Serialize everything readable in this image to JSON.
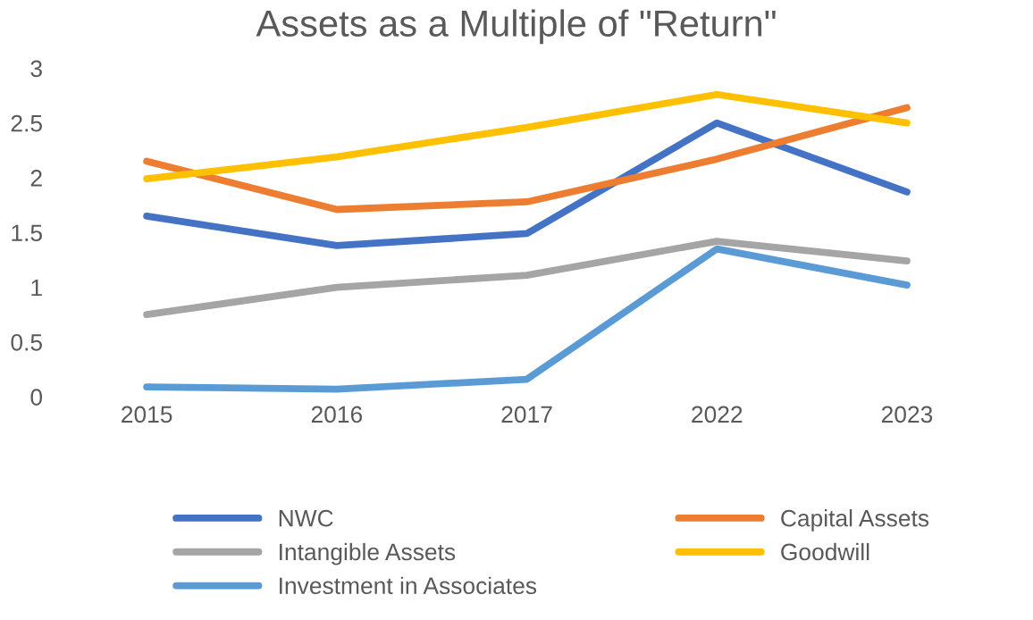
{
  "chart_data": {
    "type": "line",
    "title": "Assets as a Multiple of \"Return\"",
    "categories": [
      "2015",
      "2016",
      "2017",
      "2022",
      "2023"
    ],
    "series": [
      {
        "name": "NWC",
        "color": "#4472c4",
        "values": [
          1.65,
          1.38,
          1.49,
          2.5,
          1.87
        ]
      },
      {
        "name": "Capital Assets",
        "color": "#ed7d31",
        "values": [
          2.15,
          1.71,
          1.78,
          2.17,
          2.64
        ]
      },
      {
        "name": "Intangible Assets",
        "color": "#a5a5a5",
        "values": [
          0.75,
          1.0,
          1.11,
          1.42,
          1.24
        ]
      },
      {
        "name": "Goodwill",
        "color": "#ffc000",
        "values": [
          1.99,
          2.19,
          2.46,
          2.76,
          2.5
        ]
      },
      {
        "name": "Investment in Associates",
        "color": "#5b9bd5",
        "values": [
          0.09,
          0.07,
          0.16,
          1.35,
          1.02
        ]
      }
    ],
    "ylim": [
      0,
      3
    ],
    "yticks": [
      0,
      0.5,
      1,
      1.5,
      2,
      2.5,
      3
    ],
    "grid": false,
    "legend": "bottom",
    "marker": "none",
    "line_style": "solid"
  }
}
